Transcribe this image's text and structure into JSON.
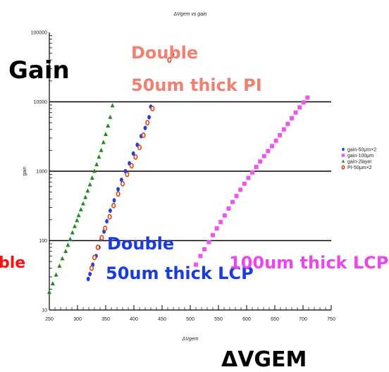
{
  "chart_data": {
    "type": "scatter",
    "title": "ΔVgem vs gain",
    "xlabel": "ΔVgem",
    "ylabel": "gain",
    "xlim": [
      250,
      750
    ],
    "ylim": [
      10,
      100000
    ],
    "log_y": true,
    "x_ticks": [
      "250",
      "300",
      "350",
      "400",
      "450",
      "500",
      "550",
      "600",
      "650",
      "700",
      "750"
    ],
    "y_ticks": [
      "10",
      "100",
      "1000",
      "10000",
      "100000"
    ],
    "grid_y_major": true,
    "legend_position": "right",
    "series": [
      {
        "name": "gain-50μm×2",
        "color": "#1f3fe0",
        "marker": "circle",
        "points": [
          [
            319,
            28
          ],
          [
            322,
            33
          ],
          [
            327,
            45
          ],
          [
            333,
            60
          ],
          [
            338,
            80
          ],
          [
            342,
            105
          ],
          [
            347,
            135
          ],
          [
            352,
            190
          ],
          [
            358,
            270
          ],
          [
            365,
            380
          ],
          [
            372,
            550
          ],
          [
            378,
            750
          ],
          [
            385,
            1000
          ],
          [
            392,
            1300
          ],
          [
            399,
            1800
          ],
          [
            406,
            2400
          ],
          [
            413,
            3200
          ],
          [
            420,
            4200
          ],
          [
            427,
            6000
          ],
          [
            430,
            8500
          ]
        ]
      },
      {
        "name": "gain-100μm",
        "color": "#ee55ee",
        "marker": "square",
        "points": [
          [
            510,
            45
          ],
          [
            518,
            60
          ],
          [
            525,
            75
          ],
          [
            533,
            95
          ],
          [
            540,
            120
          ],
          [
            547,
            150
          ],
          [
            554,
            185
          ],
          [
            561,
            230
          ],
          [
            568,
            290
          ],
          [
            575,
            360
          ],
          [
            582,
            440
          ],
          [
            589,
            540
          ],
          [
            596,
            660
          ],
          [
            603,
            800
          ],
          [
            610,
            960
          ],
          [
            617,
            1150
          ],
          [
            624,
            1380
          ],
          [
            631,
            1650
          ],
          [
            638,
            1950
          ],
          [
            645,
            2300
          ],
          [
            652,
            2750
          ],
          [
            659,
            3300
          ],
          [
            666,
            4000
          ],
          [
            673,
            4800
          ],
          [
            680,
            5800
          ],
          [
            687,
            7000
          ],
          [
            694,
            8300
          ],
          [
            701,
            9800
          ],
          [
            708,
            11500
          ]
        ]
      },
      {
        "name": "gain-2layer",
        "color": "#228822",
        "marker": "triangle",
        "points": [
          [
            250,
            18
          ],
          [
            256,
            24
          ],
          [
            262,
            32
          ],
          [
            268,
            43
          ],
          [
            273,
            55
          ],
          [
            279,
            70
          ],
          [
            283,
            86
          ],
          [
            287,
            105
          ],
          [
            291,
            130
          ],
          [
            295,
            160
          ],
          [
            299,
            195
          ],
          [
            302,
            230
          ],
          [
            306,
            280
          ],
          [
            310,
            340
          ],
          [
            314,
            420
          ],
          [
            318,
            520
          ],
          [
            322,
            640
          ],
          [
            326,
            800
          ],
          [
            330,
            1000
          ],
          [
            334,
            1250
          ],
          [
            338,
            1600
          ],
          [
            342,
            2000
          ],
          [
            346,
            2600
          ],
          [
            350,
            3400
          ],
          [
            354,
            4500
          ],
          [
            358,
            6000
          ],
          [
            362,
            8800
          ]
        ]
      },
      {
        "name": "PI-50μm×2",
        "color": "#e23a10",
        "marker": "open-circle",
        "points": [
          [
            325,
            40
          ],
          [
            330,
            57
          ],
          [
            336,
            80
          ],
          [
            343,
            110
          ],
          [
            349,
            150
          ],
          [
            357,
            220
          ],
          [
            364,
            320
          ],
          [
            372,
            470
          ],
          [
            380,
            660
          ],
          [
            388,
            900
          ],
          [
            396,
            1200
          ],
          [
            403,
            1600
          ],
          [
            410,
            2200
          ],
          [
            417,
            3300
          ],
          [
            424,
            5000
          ],
          [
            433,
            8000
          ],
          [
            463,
            40000
          ],
          [
            468,
            48000
          ]
        ]
      }
    ],
    "annotations": [
      {
        "text": "Gain",
        "color": "#000000"
      },
      {
        "text": "Double",
        "color": "#f08070"
      },
      {
        "text": "50um thick PI",
        "color": "#f08070"
      },
      {
        "text": "Double",
        "color": "#1a3be0"
      },
      {
        "text": "50um thick LCP",
        "color": "#1a3be0"
      },
      {
        "text": "100um thick LCP",
        "color": "#ee44ee"
      },
      {
        "text": "ble",
        "color": "#ff1010"
      },
      {
        "text": "ΔVGEM",
        "color": "#000000"
      }
    ]
  }
}
